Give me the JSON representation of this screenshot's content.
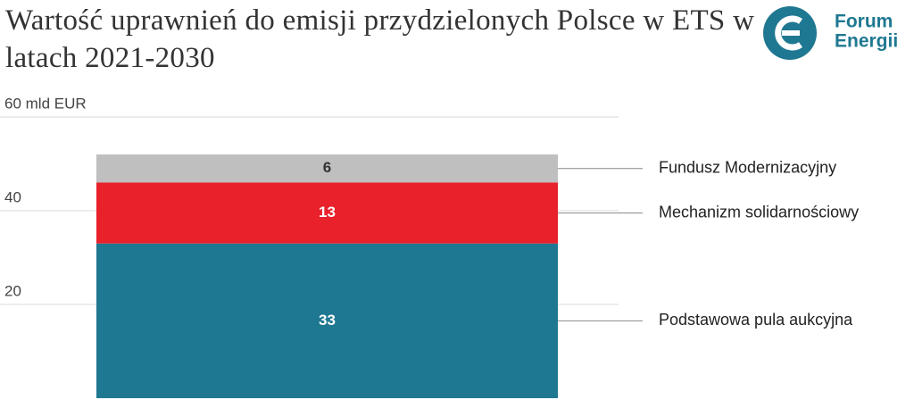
{
  "chart_data": {
    "type": "bar",
    "stacked": true,
    "title": "Wartość uprawnień do emisji przydzielonych Polsce w ETS w latach 2021-2030",
    "categories": [
      null
    ],
    "series": [
      {
        "name": "Podstawowa pula aukcyjna",
        "color": "#1f7891",
        "values": [
          33
        ]
      },
      {
        "name": "Mechanizm solidarnościowy",
        "color": "#e8212b",
        "values": [
          13
        ]
      },
      {
        "name": "Fundusz Modernizacyjny",
        "color": "#bfbfbf",
        "values": [
          6
        ]
      }
    ],
    "ylim": [
      0,
      60
    ],
    "yticks": [
      20,
      40,
      {
        "value": 60,
        "label": "60 mld EUR"
      }
    ],
    "grid": true,
    "legend": "right"
  },
  "logo": {
    "line1": "Forum",
    "line2": "Energii"
  }
}
